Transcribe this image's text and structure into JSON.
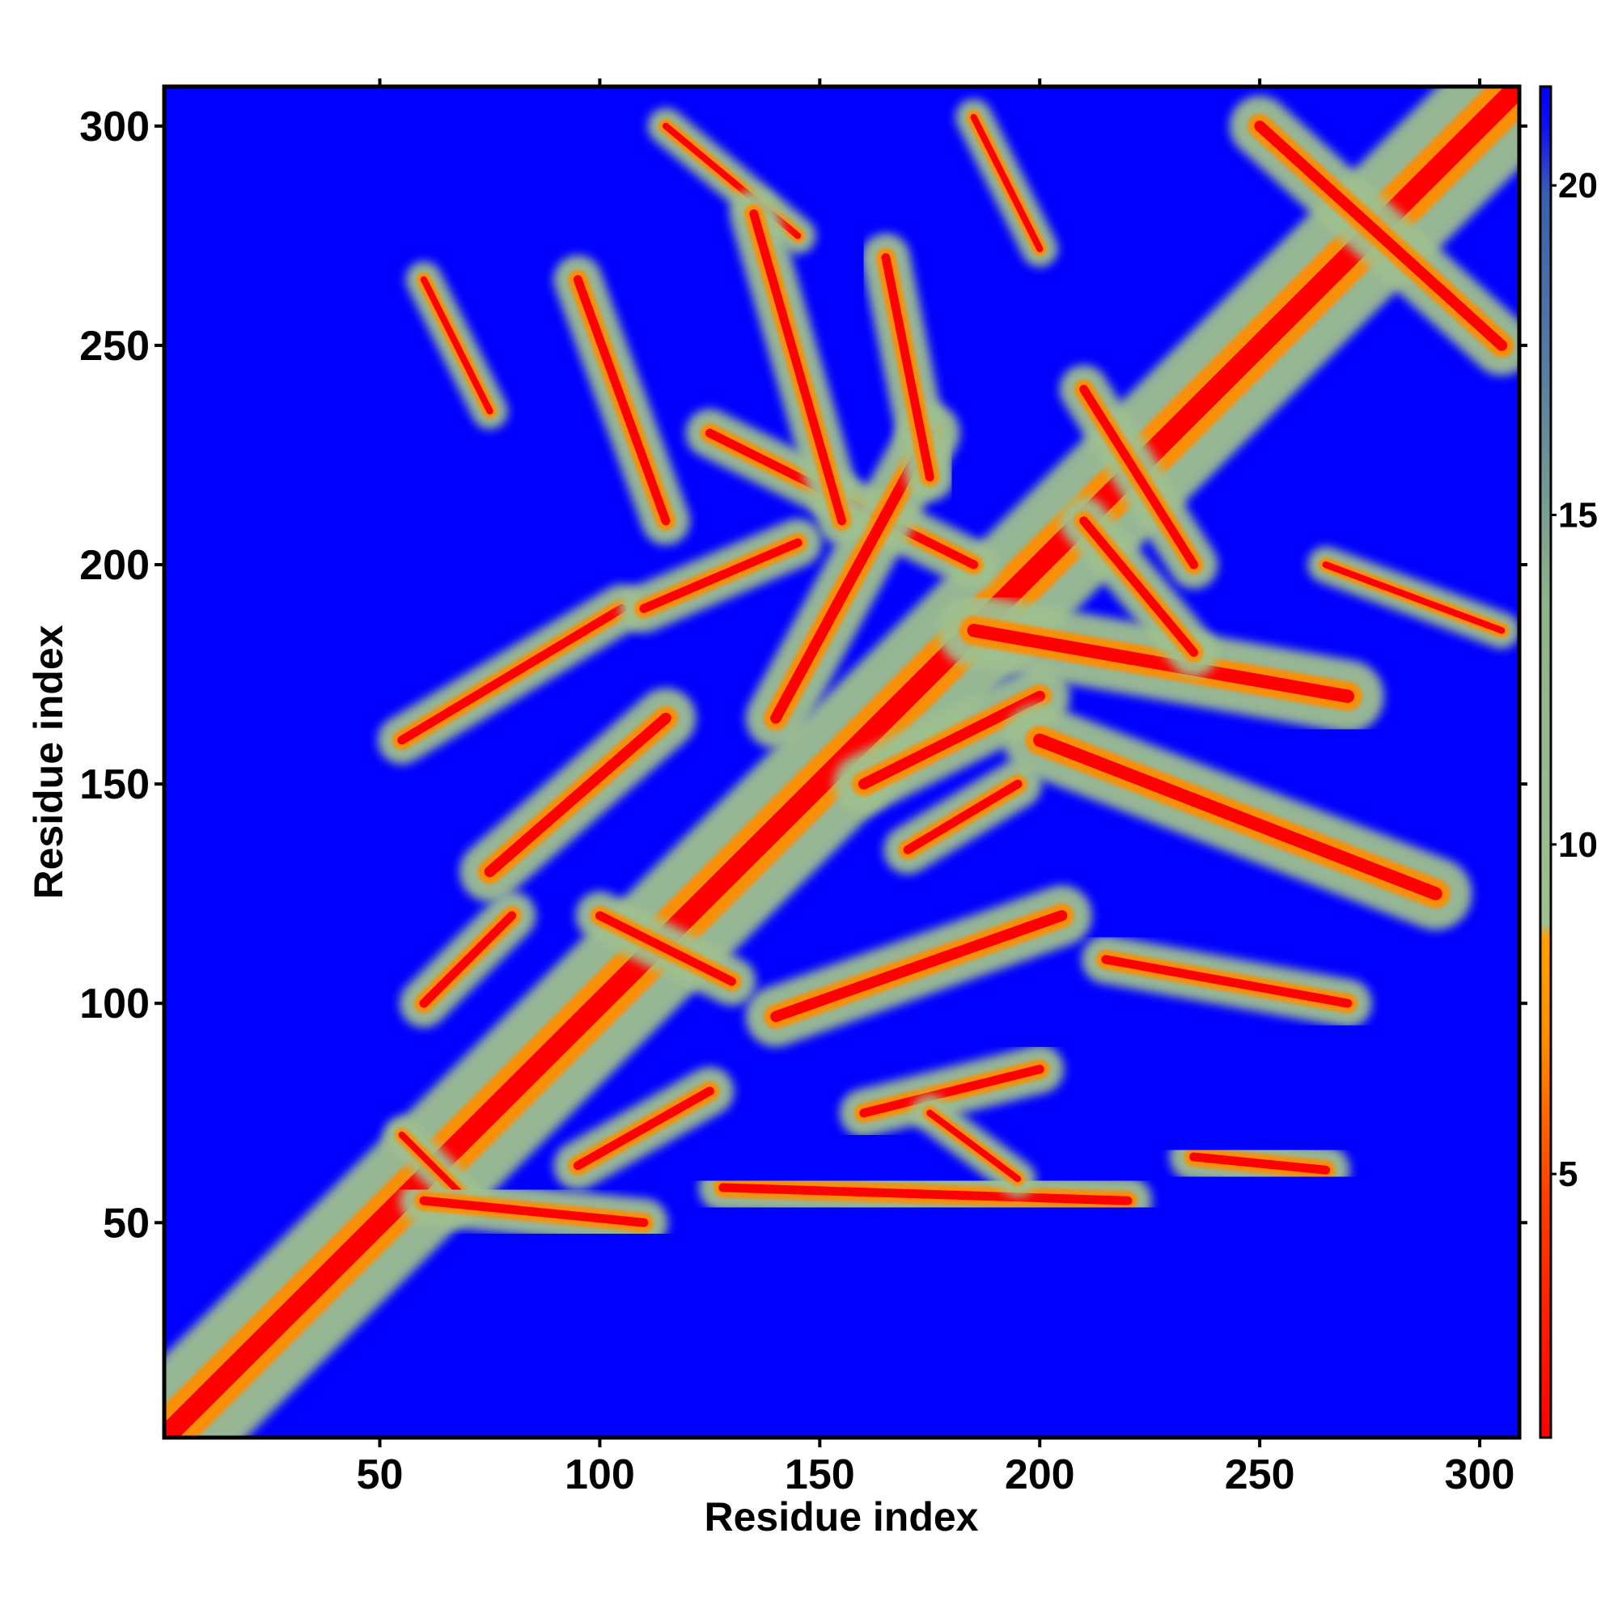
{
  "chart_data": {
    "type": "heatmap",
    "title": "",
    "xlabel": "Residue index",
    "ylabel": "Residue index",
    "xlim": [
      1,
      309
    ],
    "ylim": [
      1,
      309
    ],
    "x_ticks": [
      50,
      100,
      150,
      200,
      250,
      300
    ],
    "y_ticks": [
      50,
      100,
      150,
      200,
      250,
      300
    ],
    "colorbar": {
      "ticks": [
        5,
        10,
        15,
        20
      ],
      "range": [
        1,
        21.5
      ],
      "colors": [
        "#ff0000",
        "#ff8c00",
        "#9fc08f",
        "#4a6fa8",
        "#0000ff"
      ]
    },
    "background_color": "#0000ff",
    "contact_segments": [
      {
        "x": [
          1,
          309
        ],
        "y": [
          1,
          309
        ],
        "w": 3
      },
      {
        "x": [
          55,
          70
        ],
        "y": [
          70,
          55
        ],
        "w": 1.5
      },
      {
        "x": [
          60,
          110
        ],
        "y": [
          55,
          50
        ],
        "w": 2
      },
      {
        "x": [
          95,
          125
        ],
        "y": [
          63,
          80
        ],
        "w": 2
      },
      {
        "x": [
          128,
          220
        ],
        "y": [
          58,
          55
        ],
        "w": 2
      },
      {
        "x": [
          160,
          200
        ],
        "y": [
          75,
          85
        ],
        "w": 2
      },
      {
        "x": [
          140,
          205
        ],
        "y": [
          97,
          120
        ],
        "w": 2.5
      },
      {
        "x": [
          215,
          270
        ],
        "y": [
          110,
          100
        ],
        "w": 2
      },
      {
        "x": [
          235,
          265
        ],
        "y": [
          65,
          62
        ],
        "w": 2
      },
      {
        "x": [
          60,
          80
        ],
        "y": [
          100,
          120
        ],
        "w": 2
      },
      {
        "x": [
          75,
          115
        ],
        "y": [
          130,
          165
        ],
        "w": 2.5
      },
      {
        "x": [
          55,
          105
        ],
        "y": [
          160,
          190
        ],
        "w": 2
      },
      {
        "x": [
          110,
          145
        ],
        "y": [
          190,
          205
        ],
        "w": 2
      },
      {
        "x": [
          125,
          185
        ],
        "y": [
          230,
          200
        ],
        "w": 2
      },
      {
        "x": [
          140,
          175
        ],
        "y": [
          165,
          230
        ],
        "w": 2.5
      },
      {
        "x": [
          160,
          200
        ],
        "y": [
          150,
          170
        ],
        "w": 2.5
      },
      {
        "x": [
          170,
          195
        ],
        "y": [
          135,
          150
        ],
        "w": 2
      },
      {
        "x": [
          185,
          270
        ],
        "y": [
          185,
          170
        ],
        "w": 3
      },
      {
        "x": [
          200,
          290
        ],
        "y": [
          160,
          125
        ],
        "w": 3
      },
      {
        "x": [
          265,
          305
        ],
        "y": [
          200,
          185
        ],
        "w": 1.5
      },
      {
        "x": [
          115,
          145
        ],
        "y": [
          300,
          275
        ],
        "w": 1.5
      },
      {
        "x": [
          135,
          155
        ],
        "y": [
          280,
          210
        ],
        "w": 2
      },
      {
        "x": [
          165,
          175
        ],
        "y": [
          270,
          220
        ],
        "w": 2
      },
      {
        "x": [
          185,
          200
        ],
        "y": [
          302,
          272
        ],
        "w": 1.5
      },
      {
        "x": [
          95,
          115
        ],
        "y": [
          265,
          210
        ],
        "w": 2
      },
      {
        "x": [
          60,
          75
        ],
        "y": [
          265,
          235
        ],
        "w": 1.5
      },
      {
        "x": [
          250,
          305
        ],
        "y": [
          300,
          250
        ],
        "w": 2.5
      },
      {
        "x": [
          210,
          235
        ],
        "y": [
          240,
          200
        ],
        "w": 2
      },
      {
        "x": [
          210,
          235
        ],
        "y": [
          210,
          180
        ],
        "w": 2
      },
      {
        "x": [
          100,
          130
        ],
        "y": [
          120,
          105
        ],
        "w": 2
      },
      {
        "x": [
          175,
          195
        ],
        "y": [
          75,
          60
        ],
        "w": 1.5
      }
    ]
  }
}
